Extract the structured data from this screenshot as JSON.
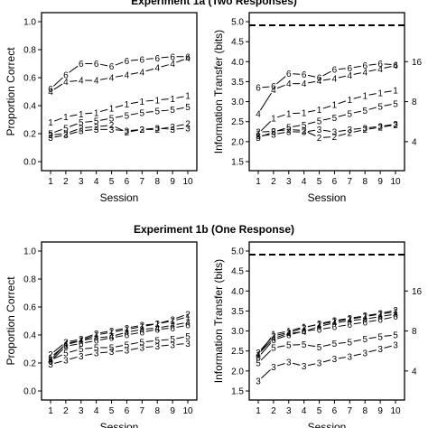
{
  "figure": {
    "row_titles": [
      "Experiment 1a (Two Responses)",
      "Experiment 1b (One Response)"
    ]
  },
  "chart_data": [
    {
      "type": "line",
      "panel": "top-left",
      "title": "Experiment 1a (Two Responses)",
      "xlabel": "Session",
      "ylabel": "Proportion Correct",
      "x": [
        1,
        2,
        3,
        4,
        5,
        6,
        7,
        8,
        9,
        10
      ],
      "xticks": [
        "1",
        "2",
        "3",
        "4",
        "5",
        "6",
        "7",
        "8",
        "9",
        "10"
      ],
      "ylim": [
        0,
        1
      ],
      "yticks": [
        "0.0",
        "0.2",
        "0.4",
        "0.6",
        "0.8",
        "1.0"
      ],
      "ytick_values": [
        0,
        0.2,
        0.4,
        0.6,
        0.8,
        1.0
      ],
      "series": [
        {
          "name": "6",
          "values": [
            0.52,
            0.62,
            0.7,
            0.7,
            0.68,
            0.72,
            0.73,
            0.74,
            0.75,
            0.75
          ]
        },
        {
          "name": "4",
          "values": [
            0.5,
            0.57,
            0.58,
            0.58,
            0.6,
            0.62,
            0.64,
            0.67,
            0.7,
            0.74
          ]
        },
        {
          "name": "1",
          "values": [
            0.28,
            0.32,
            0.34,
            0.35,
            0.38,
            0.41,
            0.43,
            0.44,
            0.45,
            0.47
          ]
        },
        {
          "name": "5",
          "values": [
            0.2,
            0.24,
            0.28,
            0.29,
            0.31,
            0.33,
            0.35,
            0.36,
            0.37,
            0.39
          ]
        },
        {
          "name": "2",
          "values": [
            0.19,
            0.2,
            0.24,
            0.25,
            0.26,
            0.21,
            0.23,
            0.23,
            0.25,
            0.27
          ]
        },
        {
          "name": "3",
          "values": [
            0.17,
            0.19,
            0.22,
            0.23,
            0.23,
            0.22,
            0.23,
            0.24,
            0.23,
            0.24
          ]
        }
      ]
    },
    {
      "type": "line",
      "panel": "top-right",
      "xlabel": "Session",
      "ylabel": "Information Transfer (bits)",
      "x": [
        1,
        2,
        3,
        4,
        5,
        6,
        7,
        8,
        9,
        10
      ],
      "xticks": [
        "1",
        "2",
        "3",
        "4",
        "5",
        "6",
        "7",
        "8",
        "9",
        "10"
      ],
      "ylim": [
        1.5,
        5.0
      ],
      "yticks": [
        "1.5",
        "2.0",
        "2.5",
        "3.0",
        "3.5",
        "4.0",
        "4.5",
        "5.0"
      ],
      "ytick_values": [
        1.5,
        2.0,
        2.5,
        3.0,
        3.5,
        4.0,
        4.5,
        5.0
      ],
      "reference_line": 4.91,
      "secondary_yticks": [
        "4",
        "8",
        "16"
      ],
      "secondary_ytick_values": [
        2.0,
        3.0,
        4.0
      ],
      "series": [
        {
          "name": "6",
          "values": [
            3.35,
            3.38,
            3.7,
            3.68,
            3.6,
            3.8,
            3.84,
            3.9,
            3.95,
            3.92
          ]
        },
        {
          "name": "4",
          "values": [
            2.7,
            3.3,
            3.45,
            3.45,
            3.52,
            3.58,
            3.66,
            3.74,
            3.82,
            3.9
          ]
        },
        {
          "name": "1",
          "values": [
            2.2,
            2.58,
            2.7,
            2.72,
            2.8,
            2.92,
            3.05,
            3.15,
            3.22,
            3.28
          ]
        },
        {
          "name": "5",
          "values": [
            2.1,
            2.24,
            2.36,
            2.42,
            2.52,
            2.6,
            2.7,
            2.78,
            2.88,
            2.95
          ]
        },
        {
          "name": "2",
          "values": [
            2.24,
            2.26,
            2.3,
            2.28,
            2.1,
            2.12,
            2.22,
            2.3,
            2.36,
            2.42
          ]
        },
        {
          "name": "3",
          "values": [
            2.14,
            2.18,
            2.25,
            2.24,
            2.3,
            2.24,
            2.3,
            2.34,
            2.38,
            2.44
          ]
        }
      ]
    },
    {
      "type": "line",
      "panel": "bottom-left",
      "title": "Experiment 1b (One Response)",
      "xlabel": "Session",
      "ylabel": "Proportion Correct",
      "x": [
        1,
        2,
        3,
        4,
        5,
        6,
        7,
        8,
        9,
        10
      ],
      "xticks": [
        "1",
        "2",
        "3",
        "4",
        "5",
        "6",
        "7",
        "8",
        "9",
        "10"
      ],
      "ylim": [
        0,
        1
      ],
      "yticks": [
        "0.0",
        "0.2",
        "0.4",
        "0.6",
        "0.8",
        "1.0"
      ],
      "ytick_values": [
        0,
        0.2,
        0.4,
        0.6,
        0.8,
        1.0
      ],
      "series": [
        {
          "name": "1",
          "values": [
            0.24,
            0.33,
            0.36,
            0.4,
            0.42,
            0.44,
            0.46,
            0.48,
            0.5,
            0.53
          ]
        },
        {
          "name": "2",
          "values": [
            0.26,
            0.35,
            0.37,
            0.41,
            0.43,
            0.45,
            0.47,
            0.48,
            0.51,
            0.55
          ]
        },
        {
          "name": "4",
          "values": [
            0.22,
            0.34,
            0.36,
            0.38,
            0.39,
            0.42,
            0.44,
            0.45,
            0.47,
            0.49
          ]
        },
        {
          "name": "6",
          "values": [
            0.21,
            0.32,
            0.34,
            0.36,
            0.38,
            0.4,
            0.42,
            0.44,
            0.45,
            0.47
          ]
        },
        {
          "name": "5",
          "values": [
            0.22,
            0.27,
            0.3,
            0.31,
            0.31,
            0.33,
            0.35,
            0.36,
            0.37,
            0.39
          ]
        },
        {
          "name": "3",
          "values": [
            0.19,
            0.22,
            0.25,
            0.27,
            0.28,
            0.29,
            0.31,
            0.32,
            0.33,
            0.34
          ]
        }
      ]
    },
    {
      "type": "line",
      "panel": "bottom-right",
      "xlabel": "Session",
      "ylabel": "Information Transfer (bits)",
      "x": [
        1,
        2,
        3,
        4,
        5,
        6,
        7,
        8,
        9,
        10
      ],
      "xticks": [
        "1",
        "2",
        "3",
        "4",
        "5",
        "6",
        "7",
        "8",
        "9",
        "10"
      ],
      "ylim": [
        1.5,
        5.0
      ],
      "yticks": [
        "1.5",
        "2.0",
        "2.5",
        "3.0",
        "3.5",
        "4.0",
        "4.5",
        "5.0"
      ],
      "ytick_values": [
        1.5,
        2.0,
        2.5,
        3.0,
        3.5,
        4.0,
        4.5,
        5.0
      ],
      "reference_line": 4.91,
      "secondary_yticks": [
        "4",
        "8",
        "16"
      ],
      "secondary_ytick_values": [
        2.0,
        3.0,
        4.0
      ],
      "series": [
        {
          "name": "1",
          "values": [
            2.4,
            2.92,
            3.0,
            3.1,
            3.16,
            3.24,
            3.3,
            3.36,
            3.42,
            3.48
          ]
        },
        {
          "name": "2",
          "values": [
            2.46,
            2.88,
            2.96,
            3.08,
            3.18,
            3.26,
            3.32,
            3.38,
            3.44,
            3.52
          ]
        },
        {
          "name": "4",
          "values": [
            2.42,
            2.82,
            2.94,
            2.98,
            3.12,
            3.2,
            3.26,
            3.3,
            3.36,
            3.42
          ]
        },
        {
          "name": "6",
          "values": [
            2.34,
            2.78,
            2.9,
            3.0,
            3.04,
            3.1,
            3.16,
            3.22,
            3.28,
            3.36
          ]
        },
        {
          "name": "5",
          "values": [
            2.2,
            2.58,
            2.65,
            2.66,
            2.6,
            2.68,
            2.72,
            2.8,
            2.86,
            2.9
          ]
        },
        {
          "name": "3",
          "values": [
            1.75,
            2.1,
            2.22,
            2.12,
            2.2,
            2.3,
            2.36,
            2.45,
            2.55,
            2.65
          ]
        }
      ]
    }
  ]
}
